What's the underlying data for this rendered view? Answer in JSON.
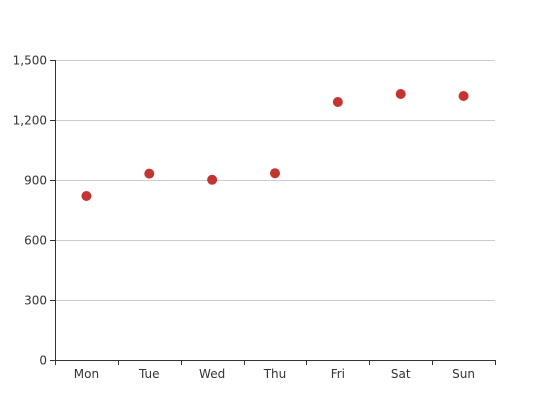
{
  "chart_data": {
    "type": "scatter",
    "title": "",
    "xlabel": "",
    "ylabel": "",
    "categories": [
      "Mon",
      "Tue",
      "Wed",
      "Thu",
      "Fri",
      "Sat",
      "Sun"
    ],
    "values": [
      820,
      932,
      901,
      934,
      1290,
      1330,
      1320
    ],
    "ylim": [
      0,
      1500
    ],
    "yticks": [
      0,
      300,
      600,
      900,
      1200,
      1500
    ],
    "ytick_labels": [
      "0",
      "300",
      "600",
      "900",
      "1,200",
      "1,500"
    ],
    "grid": true,
    "legend": "none",
    "marker_color": "#c23531",
    "grid_color": "#cccccc",
    "axis_color": "#333333"
  }
}
